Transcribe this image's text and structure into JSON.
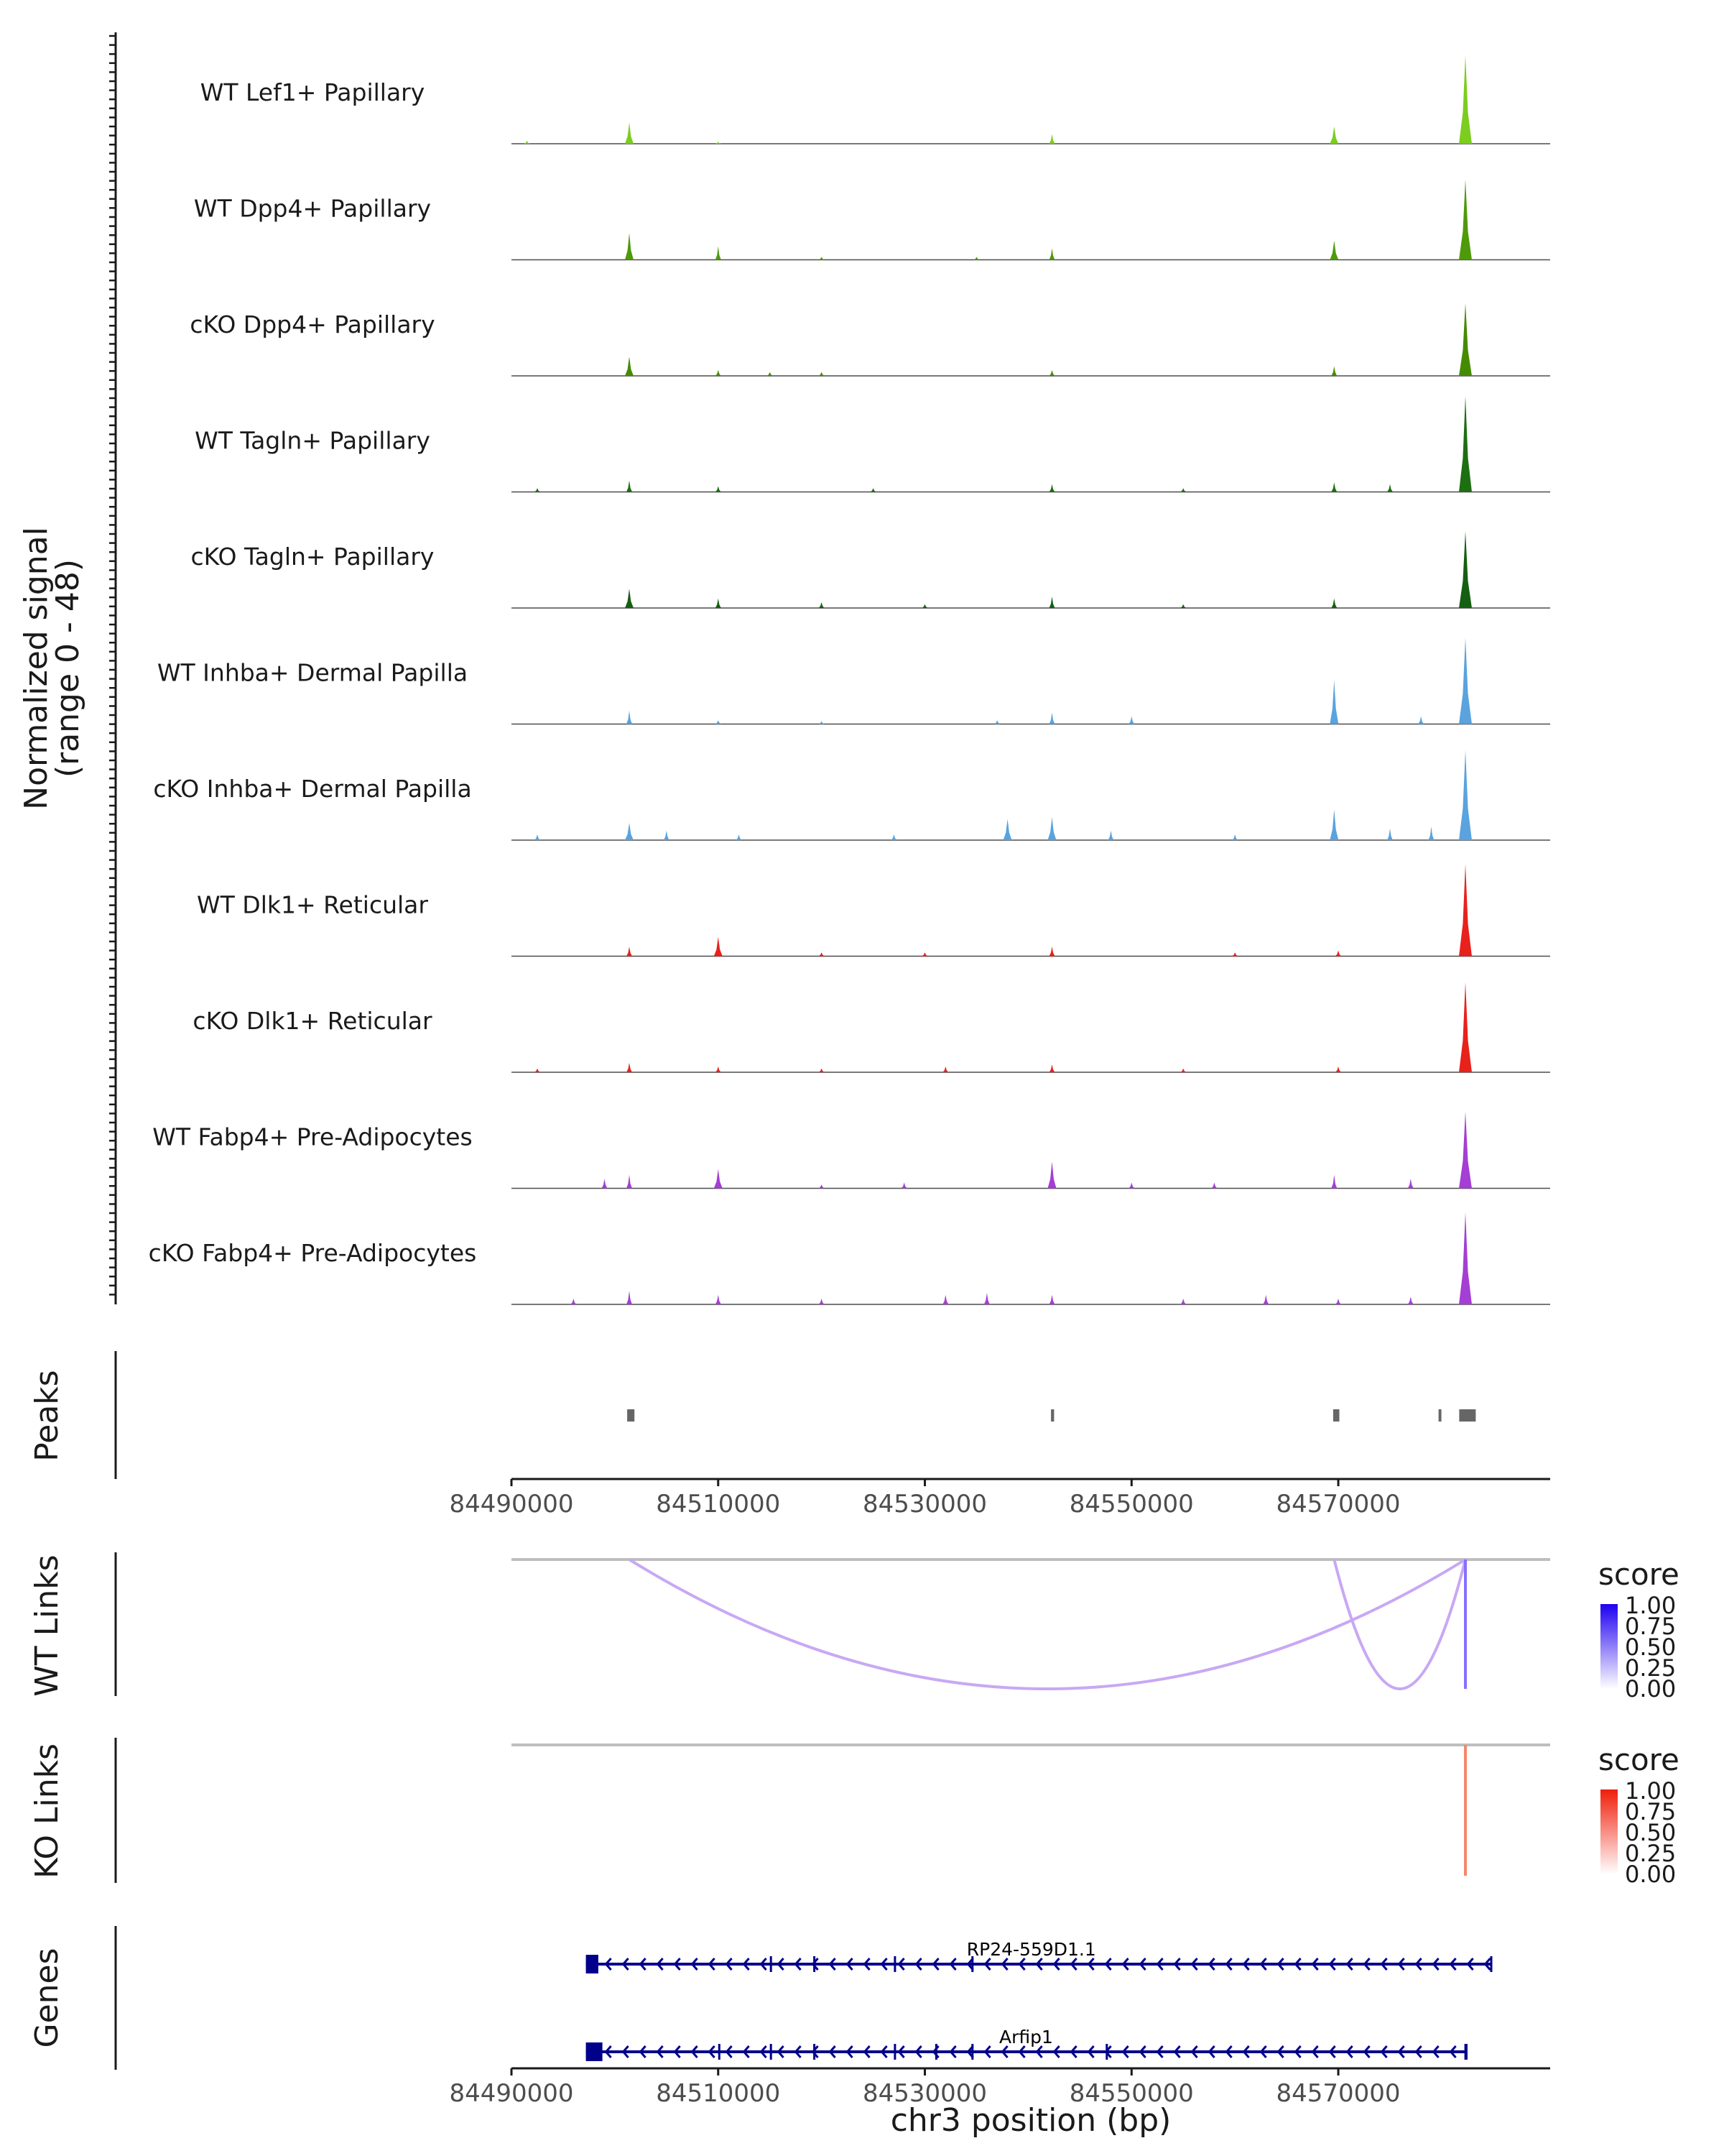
{
  "chart_data": {
    "type": "genome-track",
    "coverage": {
      "ylabel": "Normalized signal",
      "ylabel_range": "(range 0 - 48)",
      "yrange": [
        0,
        48
      ],
      "tracks": [
        {
          "label": "WT Lef1+ Papillary",
          "color": "#7CCD1E",
          "peaks": [
            [
              84491500,
              1.5
            ],
            [
              84501400,
              11
            ],
            [
              84510000,
              1
            ],
            [
              84542300,
              5
            ],
            [
              84569600,
              9
            ],
            [
              84582300,
              46
            ]
          ]
        },
        {
          "label": "WT Dpp4+ Papillary",
          "color": "#4E9A0A",
          "peaks": [
            [
              84501400,
              14
            ],
            [
              84510000,
              7
            ],
            [
              84520000,
              1.5
            ],
            [
              84535000,
              1.5
            ],
            [
              84542300,
              6
            ],
            [
              84569600,
              10
            ],
            [
              84582300,
              42
            ]
          ]
        },
        {
          "label": "cKO Dpp4+ Papillary",
          "color": "#458B00",
          "peaks": [
            [
              84501400,
              10
            ],
            [
              84510000,
              3
            ],
            [
              84515000,
              2
            ],
            [
              84520000,
              2
            ],
            [
              84542300,
              3
            ],
            [
              84569600,
              5
            ],
            [
              84582300,
              38
            ]
          ]
        },
        {
          "label": "WT Tagln+ Papillary",
          "color": "#1E6E12",
          "peaks": [
            [
              84492500,
              2
            ],
            [
              84501400,
              6
            ],
            [
              84510000,
              3
            ],
            [
              84525000,
              2
            ],
            [
              84542300,
              4
            ],
            [
              84555000,
              2
            ],
            [
              84569600,
              5
            ],
            [
              84575000,
              4
            ],
            [
              84582300,
              50
            ]
          ]
        },
        {
          "label": "cKO Tagln+ Papillary",
          "color": "#155F12",
          "peaks": [
            [
              84501400,
              10
            ],
            [
              84510000,
              5
            ],
            [
              84520000,
              3
            ],
            [
              84530000,
              2
            ],
            [
              84542300,
              6
            ],
            [
              84555000,
              2
            ],
            [
              84569600,
              5
            ],
            [
              84582300,
              40
            ]
          ]
        },
        {
          "label": "WT Inhba+ Dermal Papilla",
          "color": "#5AA3DE",
          "peaks": [
            [
              84501400,
              7
            ],
            [
              84510000,
              2
            ],
            [
              84520000,
              1.5
            ],
            [
              84537000,
              2
            ],
            [
              84542300,
              6
            ],
            [
              84550000,
              4
            ],
            [
              84569600,
              23
            ],
            [
              84578000,
              4
            ],
            [
              84582300,
              45
            ]
          ]
        },
        {
          "label": "cKO Inhba+ Dermal Papilla",
          "color": "#5AA3DE",
          "peaks": [
            [
              84492500,
              3
            ],
            [
              84501400,
              9
            ],
            [
              84505000,
              5
            ],
            [
              84512000,
              3
            ],
            [
              84527000,
              3
            ],
            [
              84538000,
              11
            ],
            [
              84542300,
              12
            ],
            [
              84548000,
              5
            ],
            [
              84560000,
              3
            ],
            [
              84569600,
              16
            ],
            [
              84575000,
              6
            ],
            [
              84579000,
              7
            ],
            [
              84582300,
              47
            ]
          ]
        },
        {
          "label": "WT Dlk1+ Reticular",
          "color": "#E8211C",
          "peaks": [
            [
              84501400,
              5
            ],
            [
              84510000,
              10
            ],
            [
              84520000,
              2
            ],
            [
              84530000,
              2
            ],
            [
              84542300,
              5
            ],
            [
              84560000,
              2
            ],
            [
              84570000,
              3
            ],
            [
              84582300,
              48
            ]
          ]
        },
        {
          "label": "cKO Dlk1+ Reticular",
          "color": "#E8211C",
          "peaks": [
            [
              84492500,
              2
            ],
            [
              84501400,
              5
            ],
            [
              84510000,
              3
            ],
            [
              84520000,
              2
            ],
            [
              84532000,
              3
            ],
            [
              84542300,
              4
            ],
            [
              84555000,
              2
            ],
            [
              84570000,
              3
            ],
            [
              84582300,
              47
            ]
          ]
        },
        {
          "label": "WT Fabp4+ Pre-Adipocytes",
          "color": "#A43ED4",
          "peaks": [
            [
              84499000,
              5
            ],
            [
              84501400,
              7
            ],
            [
              84510000,
              10
            ],
            [
              84520000,
              2
            ],
            [
              84528000,
              3
            ],
            [
              84542300,
              14
            ],
            [
              84550000,
              3
            ],
            [
              84558000,
              3
            ],
            [
              84569600,
              7
            ],
            [
              84577000,
              5
            ],
            [
              84582300,
              40
            ]
          ]
        },
        {
          "label": "cKO Fabp4+ Pre-Adipocytes",
          "color": "#A43ED4",
          "peaks": [
            [
              84496000,
              3
            ],
            [
              84501400,
              7
            ],
            [
              84510000,
              5
            ],
            [
              84520000,
              3
            ],
            [
              84532000,
              5
            ],
            [
              84536000,
              6
            ],
            [
              84542300,
              5
            ],
            [
              84555000,
              3
            ],
            [
              84563000,
              5
            ],
            [
              84570000,
              3
            ],
            [
              84577000,
              4
            ],
            [
              84582300,
              48
            ]
          ]
        }
      ]
    },
    "peaks": {
      "label": "Peaks",
      "color": "#666666",
      "regions": [
        [
          84501200,
          84501900
        ],
        [
          84542200,
          84542500
        ],
        [
          84569500,
          84570100
        ],
        [
          84579700,
          84579900
        ],
        [
          84581700,
          84583300
        ]
      ]
    },
    "axis": {
      "xlim": [
        84490000,
        84590500
      ],
      "ticks": [
        84490000,
        84510000,
        84530000,
        84550000,
        84570000
      ],
      "tick_labels": [
        "84490000",
        "84510000",
        "84530000",
        "84550000",
        "84570000"
      ],
      "xlabel": "chr3 position (bp)"
    },
    "wt_links": {
      "label": "WT Links",
      "color": "#C8A8F4",
      "legend_title": "score",
      "legend_labels": [
        "1.00",
        "0.75",
        "0.50",
        "0.25",
        "0.00"
      ],
      "legend_low": "#FFFFFF",
      "legend_high": "#0000FF",
      "links": [
        {
          "start": 84501400,
          "end": 84582300,
          "score": 0.25
        },
        {
          "start": 84569600,
          "end": 84582300,
          "score": 0.25
        },
        {
          "start": 84582300,
          "end": 84582300,
          "score": 0.6
        }
      ]
    },
    "ko_links": {
      "label": "KO Links",
      "color": "#F4876A",
      "legend_title": "score",
      "legend_labels": [
        "1.00",
        "0.75",
        "0.50",
        "0.25",
        "0.00"
      ],
      "legend_low": "#FFFFFF",
      "legend_high": "#FF0000",
      "links": [
        {
          "start": 84582300,
          "end": 84582300,
          "score": 0.55
        }
      ]
    },
    "genes": {
      "label": "Genes",
      "color": "#00008B",
      "items": [
        {
          "name": "RP24-559D1.1",
          "start": 84497200,
          "end": 84584800,
          "strand": "-",
          "exons": [
            [
              84497200,
              84498400
            ],
            [
              84515000,
              84515200
            ],
            [
              84519200,
              84519400
            ],
            [
              84527000,
              84527200
            ],
            [
              84534500,
              84534700
            ]
          ]
        },
        {
          "name": "Arfip1",
          "start": 84497200,
          "end": 84582400,
          "strand": "-",
          "exons": [
            [
              84497200,
              84498800
            ],
            [
              84510000,
              84510200
            ],
            [
              84515000,
              84515200
            ],
            [
              84519200,
              84519400
            ],
            [
              84527000,
              84527200
            ],
            [
              84531000,
              84531200
            ],
            [
              84534500,
              84534700
            ],
            [
              84547500,
              84547700
            ],
            [
              84582200,
              84582400
            ]
          ]
        }
      ]
    }
  }
}
